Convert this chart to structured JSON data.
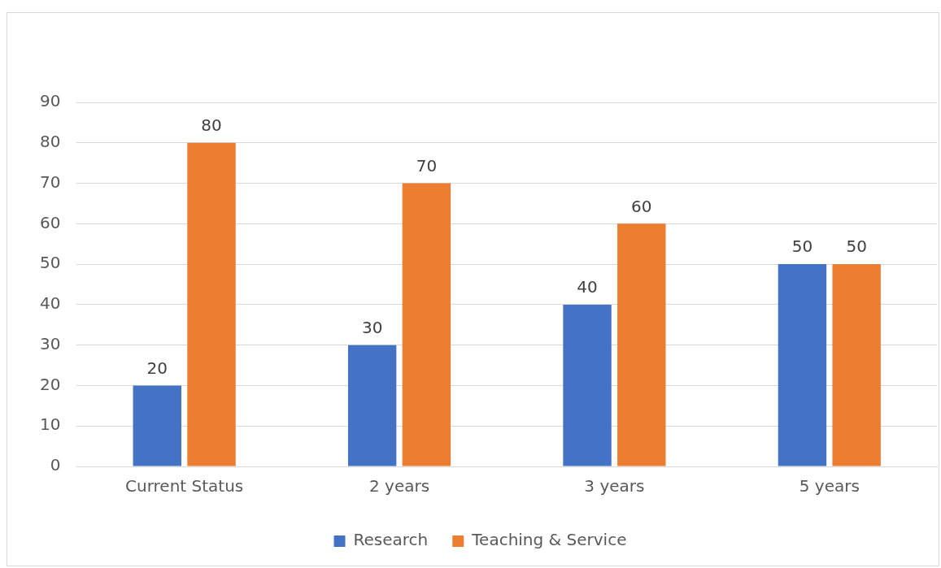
{
  "chart_data": {
    "type": "bar",
    "categories": [
      "Current Status",
      "2 years",
      "3 years",
      "5 years"
    ],
    "series": [
      {
        "name": "Research",
        "color": "#4472c4",
        "values": [
          20,
          30,
          40,
          50
        ]
      },
      {
        "name": "Teaching & Service",
        "color": "#ed7d31",
        "values": [
          80,
          70,
          60,
          50
        ]
      }
    ],
    "ylim": [
      0,
      90
    ],
    "yticks": [
      0,
      10,
      20,
      30,
      40,
      50,
      60,
      70,
      80,
      90
    ],
    "grid": "y",
    "legend": "bottom",
    "data_labels": true
  }
}
